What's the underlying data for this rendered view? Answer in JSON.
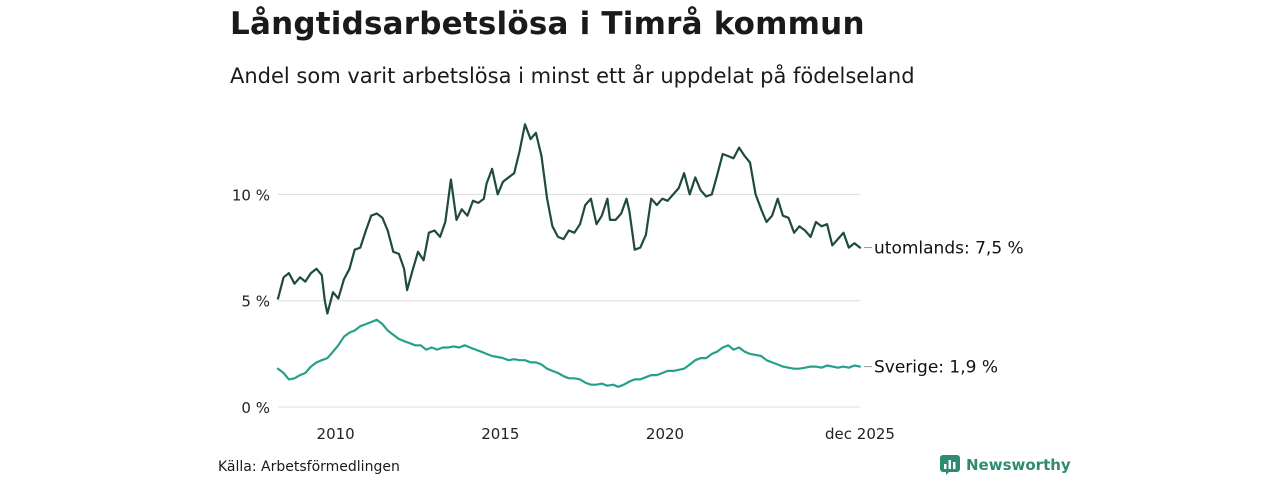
{
  "header": {
    "title": "Långtidsarbetslösa i Timrå kommun",
    "subtitle": "Andel som varit arbetslösa i minst ett år uppdelat på födelseland"
  },
  "footer": {
    "source": "Källa: Arbetsförmedlingen",
    "brand": "Newsworthy",
    "brand_icon": "bar-chart-icon"
  },
  "colors": {
    "utomlands": "#1f4a40",
    "sverige": "#26a08a",
    "grid": "#dddddd",
    "brand": "#2e8a72"
  },
  "chart_data": {
    "type": "line",
    "title": "Långtidsarbetslösa i Timrå kommun",
    "subtitle": "Andel som varit arbetslösa i minst ett år uppdelat på födelseland",
    "xlabel": "",
    "ylabel": "",
    "x_range": [
      2008.25,
      2025.92
    ],
    "ylim": [
      0,
      13.5
    ],
    "y_ticks": [
      0,
      5,
      10
    ],
    "y_tick_labels": [
      "0 %",
      "5 %",
      "10 %"
    ],
    "x_ticks": [
      2010,
      2015,
      2020,
      2025.92
    ],
    "x_tick_labels": [
      "2010",
      "2015",
      "2020",
      "dec 2025"
    ],
    "grid": true,
    "legend": "inline-right",
    "series": [
      {
        "name": "utomlands",
        "end_label": "utomlands: 7,5 %",
        "points": [
          [
            2008.25,
            5.1
          ],
          [
            2008.42,
            6.1
          ],
          [
            2008.58,
            6.3
          ],
          [
            2008.75,
            5.8
          ],
          [
            2008.92,
            6.1
          ],
          [
            2009.08,
            5.9
          ],
          [
            2009.25,
            6.3
          ],
          [
            2009.42,
            6.5
          ],
          [
            2009.58,
            6.2
          ],
          [
            2009.67,
            5.0
          ],
          [
            2009.75,
            4.4
          ],
          [
            2009.92,
            5.4
          ],
          [
            2010.08,
            5.1
          ],
          [
            2010.25,
            6.0
          ],
          [
            2010.42,
            6.5
          ],
          [
            2010.58,
            7.4
          ],
          [
            2010.75,
            7.5
          ],
          [
            2010.92,
            8.3
          ],
          [
            2011.08,
            9.0
          ],
          [
            2011.25,
            9.1
          ],
          [
            2011.42,
            8.9
          ],
          [
            2011.58,
            8.3
          ],
          [
            2011.75,
            7.3
          ],
          [
            2011.92,
            7.2
          ],
          [
            2012.08,
            6.5
          ],
          [
            2012.17,
            5.5
          ],
          [
            2012.33,
            6.4
          ],
          [
            2012.5,
            7.3
          ],
          [
            2012.67,
            6.9
          ],
          [
            2012.83,
            8.2
          ],
          [
            2013.0,
            8.3
          ],
          [
            2013.17,
            8.0
          ],
          [
            2013.33,
            8.7
          ],
          [
            2013.5,
            10.7
          ],
          [
            2013.67,
            8.8
          ],
          [
            2013.83,
            9.3
          ],
          [
            2014.0,
            9.0
          ],
          [
            2014.17,
            9.7
          ],
          [
            2014.33,
            9.6
          ],
          [
            2014.5,
            9.8
          ],
          [
            2014.58,
            10.5
          ],
          [
            2014.75,
            11.2
          ],
          [
            2014.92,
            10.0
          ],
          [
            2015.08,
            10.6
          ],
          [
            2015.25,
            10.8
          ],
          [
            2015.42,
            11.0
          ],
          [
            2015.58,
            12.0
          ],
          [
            2015.75,
            13.3
          ],
          [
            2015.92,
            12.6
          ],
          [
            2016.08,
            12.9
          ],
          [
            2016.25,
            11.8
          ],
          [
            2016.42,
            9.8
          ],
          [
            2016.58,
            8.5
          ],
          [
            2016.75,
            8.0
          ],
          [
            2016.92,
            7.9
          ],
          [
            2017.08,
            8.3
          ],
          [
            2017.25,
            8.2
          ],
          [
            2017.42,
            8.6
          ],
          [
            2017.58,
            9.5
          ],
          [
            2017.75,
            9.8
          ],
          [
            2017.92,
            8.6
          ],
          [
            2018.08,
            9.0
          ],
          [
            2018.25,
            9.8
          ],
          [
            2018.33,
            8.8
          ],
          [
            2018.5,
            8.8
          ],
          [
            2018.67,
            9.1
          ],
          [
            2018.83,
            9.8
          ],
          [
            2018.92,
            9.2
          ],
          [
            2019.08,
            7.4
          ],
          [
            2019.25,
            7.5
          ],
          [
            2019.42,
            8.1
          ],
          [
            2019.58,
            9.8
          ],
          [
            2019.75,
            9.5
          ],
          [
            2019.92,
            9.8
          ],
          [
            2020.08,
            9.7
          ],
          [
            2020.25,
            10.0
          ],
          [
            2020.42,
            10.3
          ],
          [
            2020.58,
            11.0
          ],
          [
            2020.75,
            10.0
          ],
          [
            2020.92,
            10.8
          ],
          [
            2021.08,
            10.2
          ],
          [
            2021.25,
            9.9
          ],
          [
            2021.42,
            10.0
          ],
          [
            2021.58,
            10.9
          ],
          [
            2021.75,
            11.9
          ],
          [
            2021.92,
            11.8
          ],
          [
            2022.08,
            11.7
          ],
          [
            2022.25,
            12.2
          ],
          [
            2022.42,
            11.8
          ],
          [
            2022.58,
            11.5
          ],
          [
            2022.75,
            10.0
          ],
          [
            2022.92,
            9.3
          ],
          [
            2023.08,
            8.7
          ],
          [
            2023.25,
            9.0
          ],
          [
            2023.42,
            9.8
          ],
          [
            2023.58,
            9.0
          ],
          [
            2023.75,
            8.9
          ],
          [
            2023.92,
            8.2
          ],
          [
            2024.08,
            8.5
          ],
          [
            2024.25,
            8.3
          ],
          [
            2024.42,
            8.0
          ],
          [
            2024.58,
            8.7
          ],
          [
            2024.75,
            8.5
          ],
          [
            2024.92,
            8.6
          ],
          [
            2025.08,
            7.6
          ],
          [
            2025.25,
            7.9
          ],
          [
            2025.42,
            8.2
          ],
          [
            2025.58,
            7.5
          ],
          [
            2025.75,
            7.7
          ],
          [
            2025.92,
            7.5
          ]
        ]
      },
      {
        "name": "Sverige",
        "end_label": "Sverige: 1,9 %",
        "points": [
          [
            2008.25,
            1.8
          ],
          [
            2008.42,
            1.6
          ],
          [
            2008.58,
            1.3
          ],
          [
            2008.75,
            1.35
          ],
          [
            2008.92,
            1.5
          ],
          [
            2009.08,
            1.6
          ],
          [
            2009.25,
            1.9
          ],
          [
            2009.42,
            2.1
          ],
          [
            2009.58,
            2.2
          ],
          [
            2009.75,
            2.3
          ],
          [
            2009.92,
            2.6
          ],
          [
            2010.08,
            2.9
          ],
          [
            2010.25,
            3.3
          ],
          [
            2010.42,
            3.5
          ],
          [
            2010.58,
            3.6
          ],
          [
            2010.75,
            3.8
          ],
          [
            2010.92,
            3.9
          ],
          [
            2011.08,
            4.0
          ],
          [
            2011.25,
            4.1
          ],
          [
            2011.42,
            3.9
          ],
          [
            2011.58,
            3.6
          ],
          [
            2011.75,
            3.4
          ],
          [
            2011.92,
            3.2
          ],
          [
            2012.08,
            3.1
          ],
          [
            2012.25,
            3.0
          ],
          [
            2012.42,
            2.9
          ],
          [
            2012.58,
            2.9
          ],
          [
            2012.75,
            2.7
          ],
          [
            2012.92,
            2.8
          ],
          [
            2013.08,
            2.7
          ],
          [
            2013.25,
            2.8
          ],
          [
            2013.42,
            2.8
          ],
          [
            2013.58,
            2.85
          ],
          [
            2013.75,
            2.8
          ],
          [
            2013.92,
            2.9
          ],
          [
            2014.08,
            2.8
          ],
          [
            2014.25,
            2.7
          ],
          [
            2014.42,
            2.6
          ],
          [
            2014.58,
            2.5
          ],
          [
            2014.75,
            2.4
          ],
          [
            2014.92,
            2.35
          ],
          [
            2015.08,
            2.3
          ],
          [
            2015.25,
            2.2
          ],
          [
            2015.42,
            2.25
          ],
          [
            2015.58,
            2.2
          ],
          [
            2015.75,
            2.2
          ],
          [
            2015.92,
            2.1
          ],
          [
            2016.08,
            2.1
          ],
          [
            2016.25,
            2.0
          ],
          [
            2016.42,
            1.8
          ],
          [
            2016.58,
            1.7
          ],
          [
            2016.75,
            1.6
          ],
          [
            2016.92,
            1.45
          ],
          [
            2017.08,
            1.35
          ],
          [
            2017.25,
            1.35
          ],
          [
            2017.42,
            1.3
          ],
          [
            2017.58,
            1.15
          ],
          [
            2017.75,
            1.05
          ],
          [
            2017.92,
            1.05
          ],
          [
            2018.08,
            1.1
          ],
          [
            2018.25,
            1.0
          ],
          [
            2018.42,
            1.05
          ],
          [
            2018.58,
            0.95
          ],
          [
            2018.75,
            1.05
          ],
          [
            2018.92,
            1.2
          ],
          [
            2019.08,
            1.3
          ],
          [
            2019.25,
            1.3
          ],
          [
            2019.42,
            1.4
          ],
          [
            2019.58,
            1.5
          ],
          [
            2019.75,
            1.5
          ],
          [
            2019.92,
            1.6
          ],
          [
            2020.08,
            1.7
          ],
          [
            2020.25,
            1.7
          ],
          [
            2020.42,
            1.75
          ],
          [
            2020.58,
            1.8
          ],
          [
            2020.75,
            2.0
          ],
          [
            2020.92,
            2.2
          ],
          [
            2021.08,
            2.3
          ],
          [
            2021.25,
            2.3
          ],
          [
            2021.42,
            2.5
          ],
          [
            2021.58,
            2.6
          ],
          [
            2021.75,
            2.8
          ],
          [
            2021.92,
            2.9
          ],
          [
            2022.08,
            2.7
          ],
          [
            2022.25,
            2.8
          ],
          [
            2022.42,
            2.6
          ],
          [
            2022.58,
            2.5
          ],
          [
            2022.75,
            2.45
          ],
          [
            2022.92,
            2.4
          ],
          [
            2023.08,
            2.2
          ],
          [
            2023.25,
            2.1
          ],
          [
            2023.42,
            2.0
          ],
          [
            2023.58,
            1.9
          ],
          [
            2023.75,
            1.85
          ],
          [
            2023.92,
            1.8
          ],
          [
            2024.08,
            1.8
          ],
          [
            2024.25,
            1.85
          ],
          [
            2024.42,
            1.9
          ],
          [
            2024.58,
            1.9
          ],
          [
            2024.75,
            1.85
          ],
          [
            2024.92,
            1.95
          ],
          [
            2025.08,
            1.9
          ],
          [
            2025.25,
            1.85
          ],
          [
            2025.42,
            1.9
          ],
          [
            2025.58,
            1.85
          ],
          [
            2025.75,
            1.95
          ],
          [
            2025.92,
            1.9
          ]
        ]
      }
    ]
  }
}
